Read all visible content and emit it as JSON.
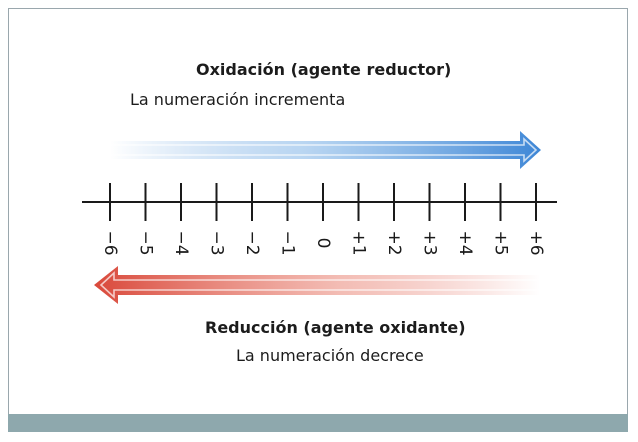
{
  "oxidation": {
    "title": "Oxidación (agente reductor)",
    "subtitle": "La numeración incrementa",
    "arrow_color": "#4a90d9"
  },
  "reduction": {
    "title": "Reducción (agente oxidante)",
    "subtitle": "La numeración decrece",
    "arrow_color": "#e05a4a"
  },
  "number_line": {
    "ticks": [
      "−6",
      "−5",
      "−4",
      "−3",
      "−2",
      "−1",
      "0",
      "+1",
      "+2",
      "+3",
      "+4",
      "+5",
      "+6"
    ]
  },
  "colors": {
    "footer": "#8ea8ad",
    "border": "#9aa7ad"
  }
}
